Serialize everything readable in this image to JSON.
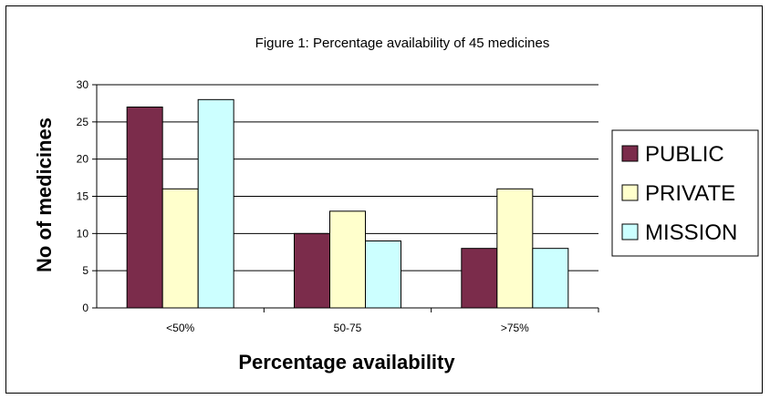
{
  "chart_data": {
    "type": "bar",
    "title": "Figure 1: Percentage availability of 45 medicines",
    "xlabel": "Percentage availability",
    "ylabel": "No of medicines",
    "categories": [
      "<50%",
      "50-75",
      ">75%"
    ],
    "series": [
      {
        "name": "PUBLIC",
        "color": "#7b2c4b",
        "values": [
          27,
          10,
          8
        ]
      },
      {
        "name": "PRIVATE",
        "color": "#ffffcc",
        "values": [
          16,
          13,
          16
        ]
      },
      {
        "name": "MISSION",
        "color": "#ccffff",
        "values": [
          28,
          9,
          8
        ]
      }
    ],
    "ylim": [
      0,
      30
    ],
    "yticks": [
      0,
      5,
      10,
      15,
      20,
      25,
      30
    ],
    "grid": true,
    "legend": "right"
  }
}
